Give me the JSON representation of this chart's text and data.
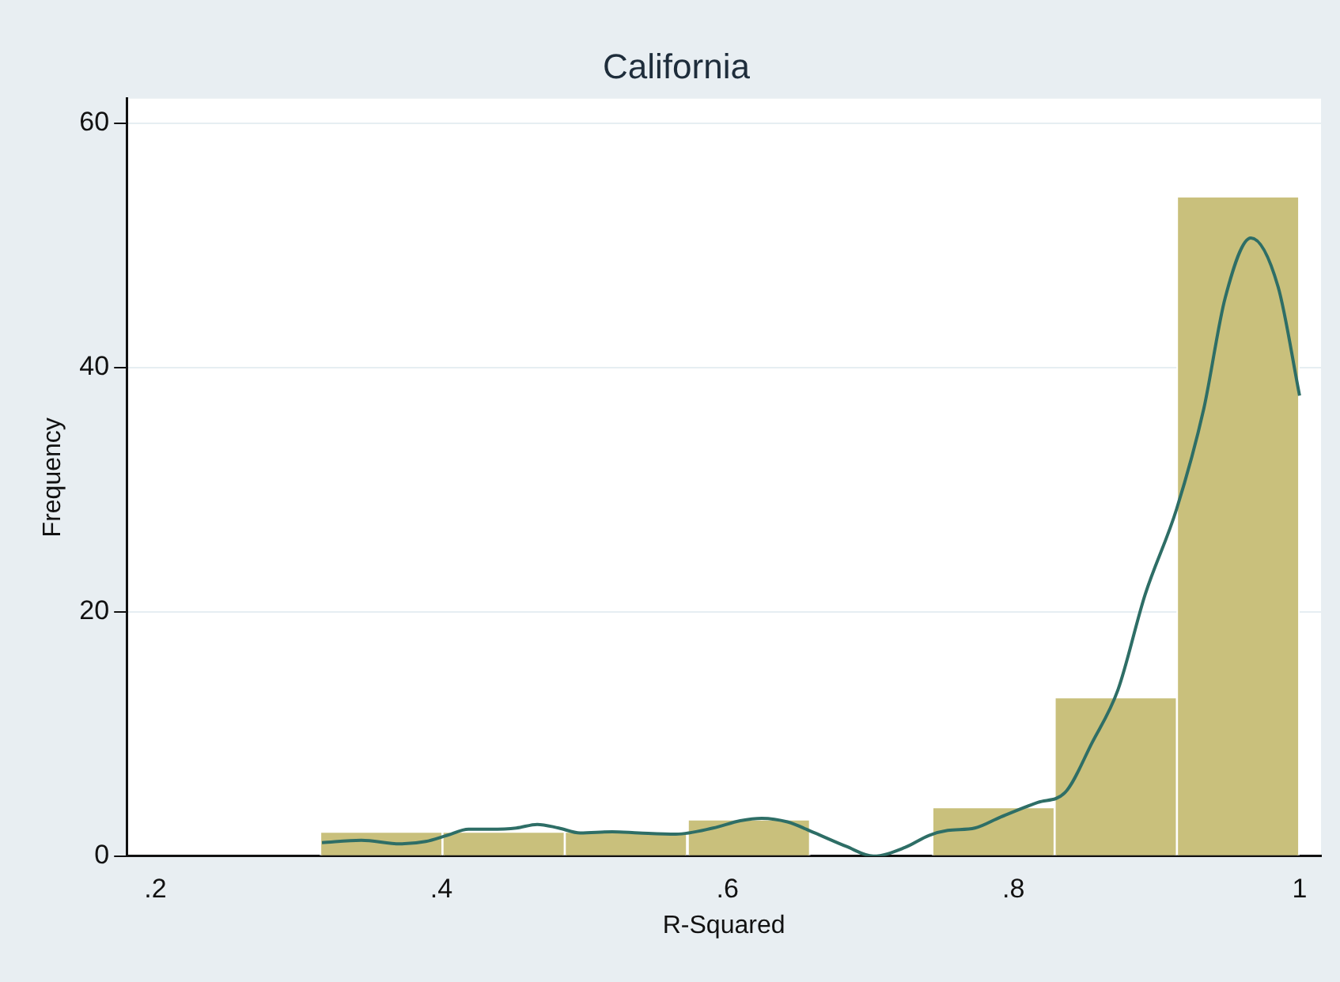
{
  "chart_data": {
    "type": "histogram",
    "title": "California",
    "xlabel": "R-Squared",
    "ylabel": "Frequency",
    "xlim": [
      0.18,
      1.015
    ],
    "ylim": [
      0,
      62
    ],
    "xticks": [
      {
        "value": 0.2,
        "label": ".2"
      },
      {
        "value": 0.4,
        "label": ".4"
      },
      {
        "value": 0.6,
        "label": ".6"
      },
      {
        "value": 0.8,
        "label": ".8"
      },
      {
        "value": 1,
        "label": "1"
      }
    ],
    "yticks": [
      0,
      20,
      40,
      60
    ],
    "grid": "y",
    "marker": "none",
    "series": [
      {
        "color": "#c9c07c",
        "bins": [
          0.315,
          0.401,
          0.486,
          0.572,
          0.658,
          0.743,
          0.829,
          0.914,
          1.0
        ],
        "values": [
          2,
          2,
          2,
          3,
          0,
          4,
          13,
          54
        ]
      },
      {
        "type": "line",
        "color": "#2e6e66",
        "x": [
          0.3165,
          0.344,
          0.371,
          0.389,
          0.404,
          0.419,
          0.434,
          0.4525,
          0.467,
          0.482,
          0.497,
          0.5195,
          0.538,
          0.564,
          0.59,
          0.609,
          0.624,
          0.642,
          0.661,
          0.683,
          0.702,
          0.724,
          0.741,
          0.754,
          0.773,
          0.791,
          0.817,
          0.836,
          0.855,
          0.873,
          0.892,
          0.914,
          0.933,
          0.948,
          0.966,
          0.985,
          1.0
        ],
        "values": [
          1.1,
          1.3,
          1.0,
          1.2,
          1.7,
          2.2,
          2.2,
          2.3,
          2.6,
          2.3,
          1.9,
          2.0,
          1.9,
          1.8,
          2.3,
          2.9,
          3.1,
          2.8,
          1.9,
          0.8,
          0,
          0.7,
          1.7,
          2.1,
          2.3,
          3.2,
          4.4,
          5.2,
          9.3,
          13.6,
          21.4,
          28.4,
          36.6,
          45.7,
          50.6,
          46.6,
          37.7
        ]
      }
    ]
  }
}
